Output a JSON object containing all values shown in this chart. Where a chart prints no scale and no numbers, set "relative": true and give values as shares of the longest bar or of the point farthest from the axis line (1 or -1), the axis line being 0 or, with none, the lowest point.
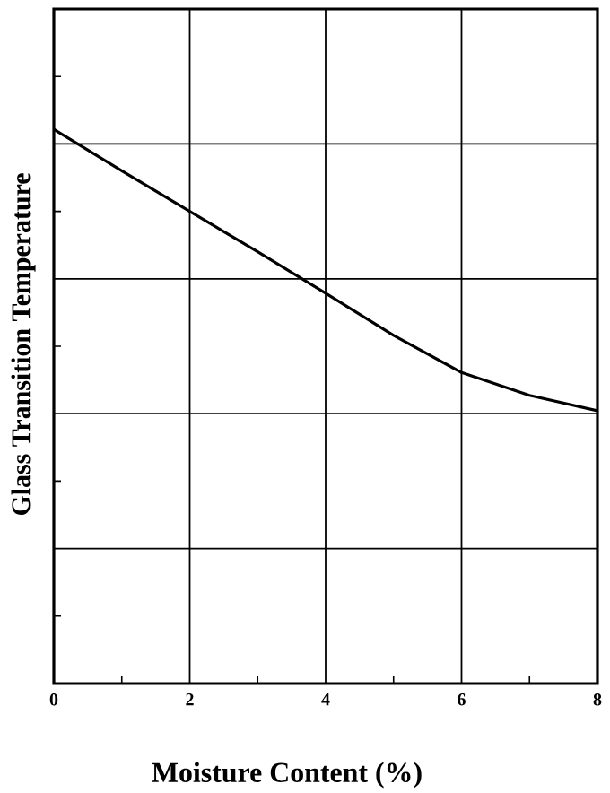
{
  "chart_data": {
    "type": "line",
    "xlabel": "Moisture Content (%)",
    "ylabel": "Glass Transition Temperature",
    "relative": true,
    "x": [
      0,
      1,
      2,
      3,
      4,
      5,
      6,
      7,
      8
    ],
    "series": [
      {
        "color": "#000000",
        "values": [
          1,
          0.925,
          0.852,
          0.779,
          0.704,
          0.628,
          0.561,
          0.52,
          0.492
        ]
      }
    ],
    "xlim": [
      0,
      8
    ],
    "xticks": [
      0,
      2,
      4,
      6,
      8
    ],
    "grid": true,
    "marker": "none",
    "line_style": "solid"
  }
}
